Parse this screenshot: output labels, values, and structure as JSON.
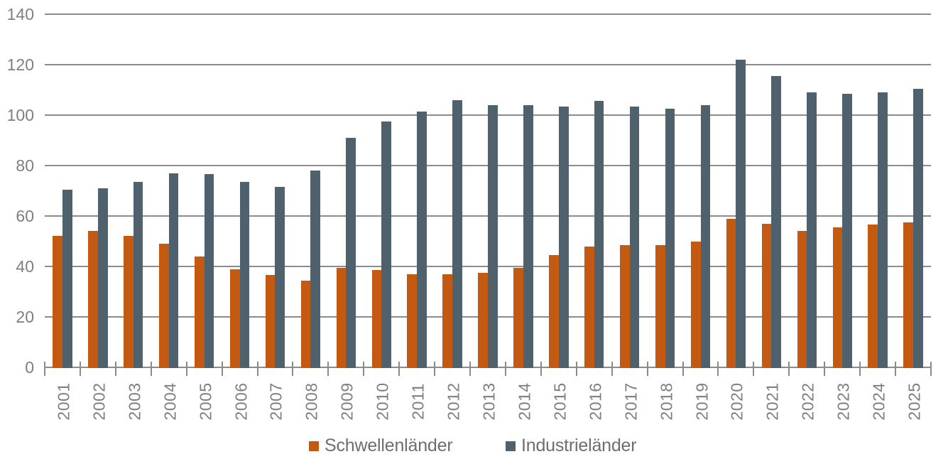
{
  "chart_data": {
    "type": "bar",
    "title": "",
    "xlabel": "",
    "ylabel": "",
    "categories": [
      "2001",
      "2002",
      "2003",
      "2004",
      "2005",
      "2006",
      "2007",
      "2008",
      "2009",
      "2010",
      "2011",
      "2012",
      "2013",
      "2014",
      "2015",
      "2016",
      "2017",
      "2018",
      "2019",
      "2020",
      "2021",
      "2022",
      "2023",
      "2024",
      "2025"
    ],
    "series": [
      {
        "name": "Schwellenländer",
        "color": "#C45A11",
        "values": [
          52,
          54,
          52,
          49,
          44,
          39,
          36.5,
          34.5,
          39.5,
          38.5,
          37,
          37,
          37.5,
          39.5,
          44.5,
          48,
          48.5,
          48.5,
          50,
          59,
          57,
          54,
          55.5,
          56.5,
          57.5
        ]
      },
      {
        "name": "Industrieländer",
        "color": "#4E616C",
        "values": [
          70.5,
          71,
          73.5,
          77,
          76.5,
          73.5,
          71.5,
          78,
          91,
          97.5,
          101.5,
          106,
          104,
          104,
          103.5,
          105.5,
          103.5,
          102.5,
          104,
          122,
          115.5,
          109,
          108.5,
          109,
          110.5
        ]
      }
    ],
    "ylim": [
      0,
      140
    ],
    "yticks": [
      0,
      20,
      40,
      60,
      80,
      100,
      120,
      140
    ],
    "grid": true,
    "legend_position": "bottom"
  },
  "colors": {
    "background": "#FFFFFF",
    "gridline": "#8C8C8C",
    "tick": "#8A8A8A",
    "axis_text": "#7F7F7F",
    "legend_text": "#6E6E6E"
  }
}
